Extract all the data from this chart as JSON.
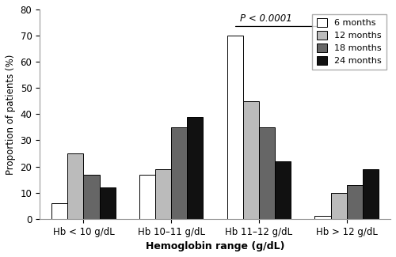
{
  "categories": [
    "Hb < 10 g/dL",
    "Hb 10–11 g/dL",
    "Hb 11–12 g/dL",
    "Hb > 12 g/dL"
  ],
  "series": {
    "6 months": [
      6,
      17,
      70,
      1
    ],
    "12 months": [
      25,
      19,
      45,
      10
    ],
    "18 months": [
      17,
      35,
      35,
      13
    ],
    "24 months": [
      12,
      39,
      22,
      19
    ]
  },
  "colors": {
    "6 months": "#FFFFFF",
    "12 months": "#BBBBBB",
    "18 months": "#666666",
    "24 months": "#111111"
  },
  "edgecolor": "#000000",
  "ylabel": "Proportion of patients (%)",
  "xlabel": "Hemoglobin range (g/dL)",
  "ylim": [
    0,
    80
  ],
  "yticks": [
    0,
    10,
    20,
    30,
    40,
    50,
    60,
    70,
    80
  ],
  "bar_width": 0.2,
  "annotation_text": "P < 0.0001",
  "legend_order": [
    "6 months",
    "12 months",
    "18 months",
    "24 months"
  ],
  "figsize": [
    5.0,
    3.25
  ],
  "dpi": 100
}
